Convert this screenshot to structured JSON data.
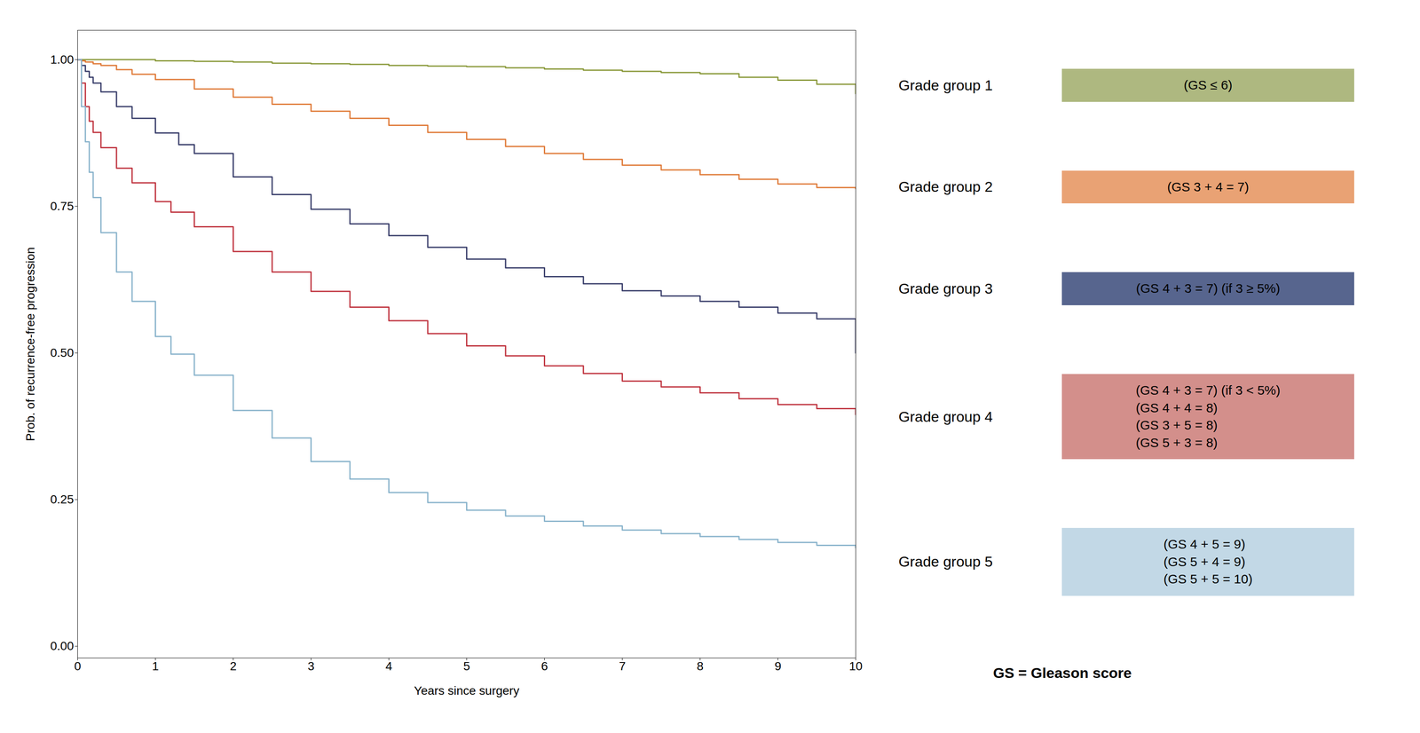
{
  "chart_data": {
    "type": "step",
    "title": "",
    "xlabel": "Years since surgery",
    "ylabel": "Prob. of recurrence-free progression",
    "xlim": [
      0,
      10
    ],
    "ylim": [
      -0.02,
      1.05
    ],
    "xticks": [
      0,
      1,
      2,
      3,
      4,
      5,
      6,
      7,
      8,
      9,
      10
    ],
    "yticks": [
      {
        "value": 0.0,
        "label": "0.00"
      },
      0.25,
      {
        "value": 0.5,
        "label": "0.50"
      },
      0.75,
      {
        "value": 1.0,
        "label": "1.00"
      }
    ],
    "grid": false,
    "series": [
      {
        "name": "Grade group 1",
        "color": "#8b9a3c",
        "x": [
          0,
          0.2,
          0.4,
          0.6,
          0.8,
          1.0,
          1.5,
          2.0,
          2.5,
          3.0,
          3.5,
          4.0,
          4.5,
          5.0,
          5.5,
          6.0,
          6.5,
          7.0,
          7.5,
          8.0,
          8.5,
          9.0,
          9.5,
          10.0
        ],
        "values": [
          1.0,
          1.0,
          1.0,
          1.0,
          1.0,
          0.998,
          0.997,
          0.996,
          0.994,
          0.993,
          0.992,
          0.99,
          0.989,
          0.988,
          0.986,
          0.984,
          0.982,
          0.98,
          0.978,
          0.976,
          0.97,
          0.965,
          0.958,
          0.942
        ]
      },
      {
        "name": "Grade group 2",
        "color": "#e07b39",
        "x": [
          0,
          0.05,
          0.1,
          0.2,
          0.3,
          0.5,
          0.7,
          1.0,
          1.5,
          2.0,
          2.5,
          3.0,
          3.5,
          4.0,
          4.5,
          5.0,
          5.5,
          6.0,
          6.5,
          7.0,
          7.5,
          8.0,
          8.5,
          9.0,
          9.5,
          10.0
        ],
        "values": [
          1.0,
          0.998,
          0.996,
          0.993,
          0.99,
          0.983,
          0.975,
          0.966,
          0.95,
          0.936,
          0.924,
          0.912,
          0.9,
          0.888,
          0.876,
          0.864,
          0.852,
          0.84,
          0.83,
          0.82,
          0.812,
          0.804,
          0.796,
          0.788,
          0.782,
          0.78
        ]
      },
      {
        "name": "Grade group 3",
        "color": "#3a3f6b",
        "x": [
          0,
          0.05,
          0.1,
          0.15,
          0.2,
          0.3,
          0.5,
          0.7,
          1.0,
          1.3,
          1.5,
          2.0,
          2.5,
          3.0,
          3.5,
          4.0,
          4.5,
          5.0,
          5.5,
          6.0,
          6.5,
          7.0,
          7.5,
          8.0,
          8.5,
          9.0,
          9.5,
          10.0
        ],
        "values": [
          1.0,
          0.99,
          0.98,
          0.97,
          0.96,
          0.945,
          0.92,
          0.9,
          0.875,
          0.855,
          0.84,
          0.8,
          0.77,
          0.745,
          0.72,
          0.7,
          0.68,
          0.66,
          0.645,
          0.63,
          0.618,
          0.606,
          0.597,
          0.588,
          0.578,
          0.568,
          0.558,
          0.5
        ]
      },
      {
        "name": "Grade group 4",
        "color": "#c03540",
        "x": [
          0,
          0.05,
          0.1,
          0.15,
          0.2,
          0.3,
          0.5,
          0.7,
          1.0,
          1.2,
          1.5,
          2.0,
          2.5,
          3.0,
          3.5,
          4.0,
          4.5,
          5.0,
          5.5,
          6.0,
          6.5,
          7.0,
          7.5,
          8.0,
          8.5,
          9.0,
          9.5,
          10.0
        ],
        "values": [
          1.0,
          0.96,
          0.92,
          0.895,
          0.876,
          0.85,
          0.815,
          0.79,
          0.758,
          0.74,
          0.715,
          0.673,
          0.638,
          0.605,
          0.578,
          0.555,
          0.533,
          0.512,
          0.495,
          0.478,
          0.465,
          0.452,
          0.442,
          0.432,
          0.422,
          0.412,
          0.405,
          0.395
        ]
      },
      {
        "name": "Grade group 5",
        "color": "#8ab4cc",
        "x": [
          0,
          0.05,
          0.1,
          0.15,
          0.2,
          0.3,
          0.5,
          0.7,
          1.0,
          1.2,
          1.5,
          2.0,
          2.5,
          3.0,
          3.5,
          4.0,
          4.5,
          5.0,
          5.5,
          6.0,
          6.5,
          7.0,
          7.5,
          8.0,
          8.5,
          9.0,
          9.5,
          10.0
        ],
        "values": [
          1.0,
          0.92,
          0.86,
          0.808,
          0.765,
          0.705,
          0.638,
          0.588,
          0.528,
          0.498,
          0.462,
          0.402,
          0.355,
          0.315,
          0.285,
          0.262,
          0.245,
          0.232,
          0.222,
          0.213,
          0.205,
          0.198,
          0.192,
          0.187,
          0.182,
          0.177,
          0.172,
          0.168
        ]
      }
    ],
    "annotations": [
      {
        "text": "(GS ≤ 6)",
        "color": "#8b9a4a"
      },
      {
        "text": "(GS 3 + 4 = 7)",
        "color": "#e07b39"
      },
      {
        "text": "(GS 4 + 3 = 7) (if 3 ≥ 5%)",
        "color": "#3a4a7a"
      },
      {
        "text": "(GS 4 + 3 = 7) (if 3 < 5%)\n(GS 4 + 4 = 8)\n(GS 3 + 5 = 8)\n(GS 5 + 3 = 8)",
        "color": "#c0605a"
      },
      {
        "text": "(GS 4 + 5 = 9)\n(GS 5 + 4 = 9)\n(GS 5 + 5 = 10)",
        "color": "#a8c8dc"
      },
      {
        "text": "GS = Gleason score"
      }
    ]
  }
}
